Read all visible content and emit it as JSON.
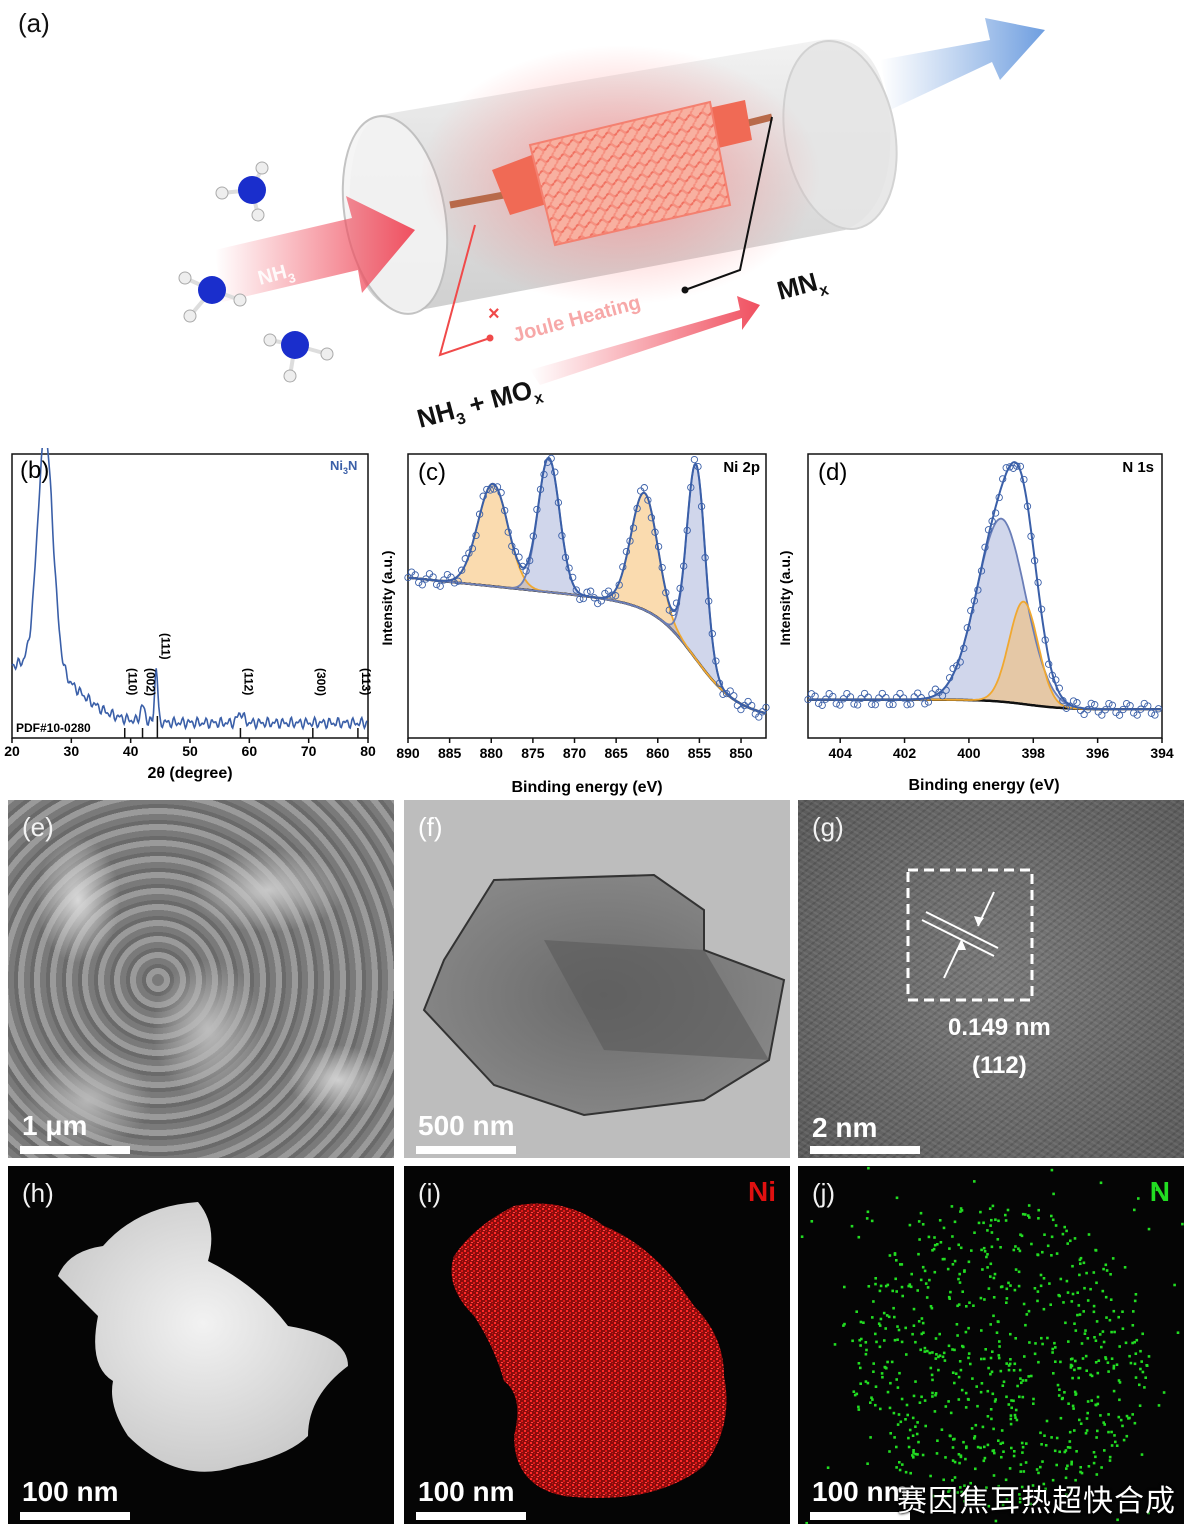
{
  "panels": {
    "a": {
      "label": "(a)",
      "nh3_arrow": "NH",
      "nh3_sub": "3",
      "joule": "Joule Heating",
      "mnx": "MN",
      "mnx_sub": "x",
      "reactant_nh3": "NH",
      "reactant_nh3_sub": "3",
      "reactant_plus": " + MO",
      "reactant_sub": "x",
      "colors": {
        "nh3_arrow": "#f05060",
        "out_arrow": "#7fa8e0",
        "n_atom": "#1a2ecc",
        "mesh": "#f47a6a"
      }
    },
    "b": {
      "label": "(b)",
      "title": "Ni",
      "title_sub": "3",
      "title_tail": "N",
      "pdf": "PDF#10-0280",
      "xlabel": "2θ (degree)",
      "xticks": [
        "20",
        "30",
        "40",
        "50",
        "60",
        "70",
        "80"
      ],
      "peaks": [
        "(110)",
        "(002)",
        "(111)",
        "(112)",
        "(300)",
        "(113)"
      ]
    },
    "c": {
      "label": "(c)",
      "title": "Ni 2p",
      "ylabel": "Intensity (a.u.)",
      "xlabel": "Binding energy (eV)",
      "xticks": [
        "890",
        "885",
        "880",
        "875",
        "870",
        "865",
        "860",
        "855",
        "850"
      ]
    },
    "d": {
      "label": "(d)",
      "title": "N 1s",
      "ylabel": "Intensity (a.u.)",
      "xlabel": "Binding energy (eV)",
      "xticks": [
        "404",
        "402",
        "400",
        "398",
        "396",
        "394"
      ]
    },
    "e": {
      "label": "(e)",
      "scale": "1 μm"
    },
    "f": {
      "label": "(f)",
      "scale": "500 nm"
    },
    "g": {
      "label": "(g)",
      "scale": "2 nm",
      "d_spacing": "0.149 nm",
      "plane": "(112)"
    },
    "h": {
      "label": "(h)",
      "scale": "100 nm"
    },
    "i": {
      "label": "(i)",
      "scale": "100 nm",
      "element": "Ni",
      "color": "#e01010"
    },
    "j": {
      "label": "(j)",
      "scale": "100 nm",
      "element": "N",
      "color": "#22dd22"
    }
  },
  "watermark": "赛因焦耳热超快合成",
  "chart_data": [
    {
      "type": "line",
      "title": "Ni3N",
      "xlabel": "2θ (degree)",
      "xlim": [
        20,
        80
      ],
      "x": [
        20,
        22,
        24,
        25,
        25.6,
        26.5,
        28,
        30,
        34,
        38,
        42,
        44.2,
        44.5,
        45,
        50,
        58.5,
        60,
        70,
        80
      ],
      "y": [
        0.52,
        0.55,
        0.72,
        0.92,
        1.0,
        0.9,
        0.55,
        0.38,
        0.22,
        0.14,
        0.12,
        0.32,
        0.2,
        0.1,
        0.07,
        0.09,
        0.05,
        0.03,
        0.02
      ],
      "reference_peaks": [
        {
          "hkl": "(110)",
          "x": 39
        },
        {
          "hkl": "(002)",
          "x": 42
        },
        {
          "hkl": "(111)",
          "x": 44.5
        },
        {
          "hkl": "(112)",
          "x": 58.5
        },
        {
          "hkl": "(300)",
          "x": 70.7
        },
        {
          "hkl": "(113)",
          "x": 78.3
        }
      ]
    },
    {
      "type": "line",
      "title": "Ni 2p",
      "xlabel": "Binding energy (eV)",
      "ylabel": "Intensity (a.u.)",
      "xlim": [
        890,
        847
      ],
      "peaks": [
        {
          "center": 879.8,
          "height": 0.42,
          "color": "orange"
        },
        {
          "center": 873.1,
          "height": 0.55,
          "color": "blue"
        },
        {
          "center": 861.6,
          "height": 0.48,
          "color": "orange"
        },
        {
          "center": 855.4,
          "height": 0.8,
          "color": "blue"
        }
      ]
    },
    {
      "type": "line",
      "title": "N 1s",
      "xlabel": "Binding energy (eV)",
      "ylabel": "Intensity (a.u.)",
      "xlim": [
        405,
        394
      ],
      "peaks": [
        {
          "center": 399.0,
          "height": 0.75,
          "color": "blue"
        },
        {
          "center": 398.3,
          "height": 0.42,
          "color": "orange"
        }
      ]
    }
  ]
}
